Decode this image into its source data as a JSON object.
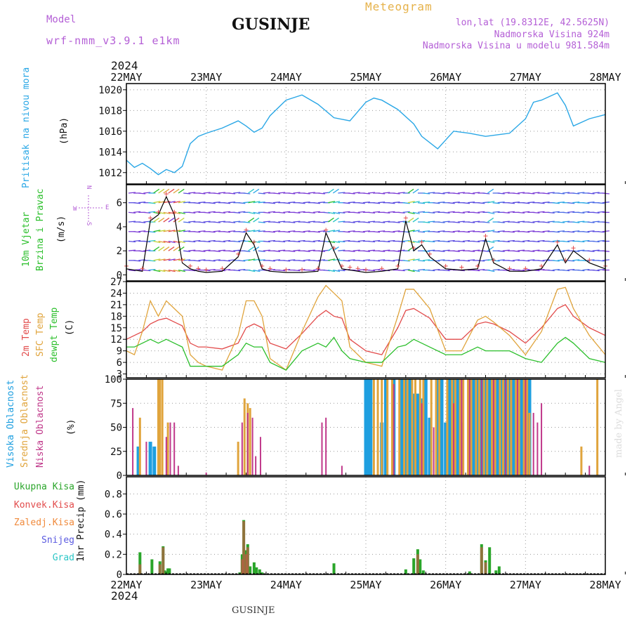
{
  "header": {
    "model_label": "Model",
    "model_name": "wrf-nmm_v3.9.1 e1km",
    "title": "GUSINJE",
    "meteogram_label": "Meteogram",
    "lonlat": "lon,lat (19.8312E, 42.5625N)",
    "elevation": "Nadmorska Visina 924m",
    "model_elevation": "Nadmorska Visina u modelu 981.584m",
    "year": "2024",
    "footer_title": "GUSINJE",
    "credit": "made by Angel"
  },
  "colors": {
    "pressure": "#2aa7e6",
    "temp2m": "#e24b4b",
    "sfc": "#e0a43c",
    "dew": "#2bbf2b",
    "high_cloud": "#1e9fe0",
    "mid_cloud": "#e0a43c",
    "low_cloud": "#c0388a",
    "total_precip": "#2aa52a",
    "conv_precip": "#e24b4b",
    "frz_precip": "#f08a3c",
    "snow": "#5a5ae0",
    "hail": "#2ac6c6"
  },
  "chart_data": [
    {
      "type": "line",
      "panel": "pressure",
      "ylabel_main": "Pritisak na nivou mora",
      "ylabel_unit": "(hPa)",
      "x_ticks": [
        "22MAY",
        "23MAY",
        "24MAY",
        "25MAY",
        "26MAY",
        "27MAY",
        "28MAY"
      ],
      "x_days": [
        0,
        1,
        2,
        3,
        4,
        5,
        6
      ],
      "y_ticks": [
        "1012",
        "1014",
        "1016",
        "1018",
        "1020"
      ],
      "ylim": [
        1010.9,
        1020.6
      ],
      "series": [
        {
          "x": [
            0,
            0.1,
            0.2,
            0.3,
            0.4,
            0.5,
            0.6,
            0.7,
            0.8,
            0.9,
            1.0,
            1.2,
            1.4,
            1.5,
            1.6,
            1.7,
            1.8,
            2.0,
            2.2,
            2.4,
            2.6,
            2.8,
            3.0,
            3.1,
            3.2,
            3.4,
            3.6,
            3.7,
            3.9,
            4.1,
            4.3,
            4.5,
            4.7,
            4.8,
            5.0,
            5.1,
            5.2,
            5.4,
            5.5,
            5.6,
            5.8,
            6.0
          ],
          "values": [
            1013.2,
            1012.5,
            1012.9,
            1012.4,
            1011.8,
            1012.3,
            1012.0,
            1012.6,
            1014.8,
            1015.5,
            1015.8,
            1016.3,
            1017.0,
            1016.5,
            1015.9,
            1016.3,
            1017.5,
            1019.0,
            1019.5,
            1018.6,
            1017.3,
            1017.0,
            1018.8,
            1019.2,
            1019.0,
            1018.1,
            1016.7,
            1015.5,
            1014.3,
            1016.0,
            1015.8,
            1015.5,
            1015.7,
            1015.8,
            1017.2,
            1018.8,
            1019.0,
            1019.7,
            1018.5,
            1016.5,
            1017.2,
            1017.6
          ]
        }
      ]
    },
    {
      "type": "line",
      "panel": "wind",
      "ylabel_main": "10m Vjetar",
      "ylabel_main2": "Brzina i Pravac",
      "ylabel_unit": "(m/s)",
      "compass": {
        "n": "N",
        "s": "S",
        "w": "W",
        "e": "E"
      },
      "y_ticks": [
        "0",
        "2",
        "4",
        "6"
      ],
      "ylim": [
        -0.5,
        7.5
      ],
      "series": [
        {
          "name": "speed",
          "x": [
            0,
            0.2,
            0.3,
            0.4,
            0.5,
            0.6,
            0.7,
            0.8,
            0.9,
            1.0,
            1.2,
            1.4,
            1.5,
            1.6,
            1.7,
            1.8,
            2.0,
            2.2,
            2.4,
            2.5,
            2.6,
            2.7,
            2.8,
            2.9,
            3.0,
            3.2,
            3.4,
            3.5,
            3.6,
            3.7,
            3.8,
            4.0,
            4.2,
            4.4,
            4.5,
            4.6,
            4.8,
            5.0,
            5.2,
            5.4,
            5.5,
            5.6,
            5.8,
            6.0
          ],
          "values": [
            0.5,
            0.3,
            4.5,
            5.0,
            6.5,
            5.0,
            1.0,
            0.5,
            0.3,
            0.2,
            0.3,
            1.5,
            3.5,
            2.5,
            0.5,
            0.3,
            0.2,
            0.2,
            0.3,
            3.5,
            2.0,
            0.5,
            0.4,
            0.3,
            0.2,
            0.3,
            0.5,
            4.5,
            2.0,
            2.5,
            1.5,
            0.5,
            0.4,
            0.5,
            3.0,
            1.0,
            0.3,
            0.3,
            0.5,
            2.5,
            1.0,
            2.0,
            1.0,
            0.5
          ]
        }
      ]
    },
    {
      "type": "line",
      "panel": "temperature",
      "ylabel_main": "2m Temp",
      "ylabel_main2": "SFC Temp",
      "ylabel_main3": "dewpt Temp",
      "ylabel_unit": "(C)",
      "y_ticks": [
        "3",
        "6",
        "9",
        "12",
        "15",
        "18",
        "21",
        "24",
        "27"
      ],
      "ylim": [
        2,
        27
      ],
      "series": [
        {
          "name": "2m Temp",
          "x": [
            0,
            0.1,
            0.2,
            0.3,
            0.4,
            0.5,
            0.6,
            0.7,
            0.8,
            0.9,
            1.0,
            1.2,
            1.4,
            1.5,
            1.6,
            1.7,
            1.8,
            2.0,
            2.2,
            2.4,
            2.5,
            2.6,
            2.7,
            2.8,
            3.0,
            3.2,
            3.4,
            3.5,
            3.6,
            3.8,
            4.0,
            4.2,
            4.4,
            4.5,
            4.6,
            4.8,
            5.0,
            5.2,
            5.4,
            5.5,
            5.6,
            5.8,
            6.0
          ],
          "values": [
            12.0,
            13.0,
            14.0,
            16.0,
            17.0,
            17.5,
            16.5,
            15.5,
            11.0,
            10.0,
            10.0,
            9.5,
            11.0,
            15.0,
            16.0,
            15.0,
            11.0,
            9.5,
            13.5,
            18.0,
            19.5,
            18.0,
            17.5,
            12.0,
            9.0,
            8.0,
            15.0,
            19.5,
            20.0,
            17.5,
            12.0,
            12.0,
            16.0,
            16.5,
            16.0,
            14.0,
            11.0,
            15.0,
            20.0,
            21.0,
            18.0,
            15.0,
            13.0
          ]
        },
        {
          "name": "SFC Temp",
          "x": [
            0,
            0.1,
            0.2,
            0.3,
            0.4,
            0.5,
            0.6,
            0.7,
            0.8,
            0.9,
            1.0,
            1.2,
            1.4,
            1.5,
            1.6,
            1.7,
            1.8,
            2.0,
            2.2,
            2.4,
            2.5,
            2.6,
            2.7,
            2.8,
            3.0,
            3.2,
            3.4,
            3.5,
            3.6,
            3.8,
            4.0,
            4.2,
            4.4,
            4.5,
            4.6,
            4.8,
            5.0,
            5.2,
            5.4,
            5.5,
            5.6,
            5.8,
            6.0
          ],
          "values": [
            9.0,
            8.0,
            14.0,
            22.0,
            18.0,
            22.0,
            20.0,
            18.0,
            8.0,
            6.0,
            5.0,
            4.0,
            13.0,
            22.0,
            22.0,
            18.0,
            7.0,
            4.0,
            14.0,
            23.0,
            26.0,
            24.0,
            22.0,
            10.0,
            6.0,
            5.0,
            18.0,
            25.0,
            25.0,
            20.0,
            9.0,
            9.0,
            17.0,
            18.0,
            16.5,
            13.0,
            8.0,
            14.0,
            25.0,
            25.5,
            20.0,
            13.0,
            8.0
          ]
        },
        {
          "name": "dewpt Temp",
          "x": [
            0,
            0.1,
            0.2,
            0.3,
            0.4,
            0.5,
            0.6,
            0.7,
            0.8,
            0.9,
            1.0,
            1.2,
            1.4,
            1.5,
            1.6,
            1.7,
            1.8,
            2.0,
            2.2,
            2.4,
            2.5,
            2.6,
            2.7,
            2.8,
            3.0,
            3.2,
            3.4,
            3.5,
            3.6,
            3.8,
            4.0,
            4.2,
            4.4,
            4.5,
            4.6,
            4.8,
            5.0,
            5.2,
            5.4,
            5.5,
            5.6,
            5.8,
            6.0
          ],
          "values": [
            10.0,
            10.0,
            11.0,
            12.0,
            11.0,
            12.0,
            11.0,
            10.0,
            5.0,
            5.0,
            5.0,
            5.0,
            8.0,
            11.0,
            10.0,
            10.0,
            6.0,
            4.0,
            9.0,
            11.0,
            10.0,
            12.5,
            9.0,
            7.0,
            6.0,
            6.0,
            10.0,
            10.5,
            12.0,
            10.0,
            8.0,
            8.0,
            10.0,
            9.0,
            9.0,
            9.0,
            7.0,
            6.0,
            11.0,
            12.5,
            11.0,
            7.0,
            6.0
          ]
        }
      ]
    },
    {
      "type": "bar",
      "panel": "clouds",
      "ylabel_main": "Visoka Oblacnost",
      "ylabel_main2": "Srednja Oblacnost",
      "ylabel_main3": "Niska Oblacnost",
      "ylabel_unit": "(%)",
      "y_ticks": [
        "0",
        "25",
        "50",
        "75",
        "100"
      ],
      "ylim": [
        0,
        100
      ],
      "series": [
        {
          "name": "high",
          "x": [
            0.15,
            0.3,
            0.35,
            3.0,
            3.03,
            3.06,
            3.2,
            3.25,
            3.35,
            3.45,
            3.5,
            3.55,
            3.6,
            3.65,
            3.7,
            3.75,
            3.8,
            3.9,
            3.95,
            4.0,
            4.05,
            4.1,
            4.15,
            4.2,
            4.3,
            4.35,
            4.4,
            4.45,
            4.5,
            4.55,
            4.6,
            4.65,
            4.7,
            4.75,
            4.8,
            4.85,
            4.9,
            4.95,
            5.0,
            5.05
          ],
          "values": [
            30,
            35,
            30,
            100,
            100,
            100,
            55,
            100,
            100,
            100,
            100,
            100,
            85,
            85,
            80,
            100,
            60,
            100,
            100,
            55,
            100,
            100,
            100,
            55,
            100,
            100,
            100,
            100,
            100,
            100,
            100,
            100,
            100,
            100,
            100,
            100,
            100,
            100,
            100,
            100
          ]
        },
        {
          "name": "mid",
          "x": [
            0.17,
            0.4,
            0.42,
            0.45,
            0.52,
            1.4,
            1.48,
            1.52,
            1.55,
            3.1,
            3.15,
            3.2,
            3.27,
            3.33,
            3.42,
            3.48,
            3.52,
            3.58,
            3.62,
            3.68,
            3.72,
            3.82,
            3.88,
            3.92,
            4.02,
            4.08,
            4.12,
            4.18,
            4.22,
            4.28,
            4.32,
            4.38,
            4.42,
            4.48,
            4.52,
            4.58,
            4.62,
            4.68,
            4.72,
            4.78,
            4.82,
            4.88,
            4.92,
            4.98,
            5.02,
            5.05,
            5.7,
            5.9
          ],
          "values": [
            60,
            100,
            100,
            100,
            55,
            35,
            80,
            75,
            70,
            100,
            100,
            100,
            100,
            100,
            100,
            100,
            100,
            100,
            100,
            100,
            100,
            100,
            100,
            100,
            100,
            100,
            100,
            100,
            100,
            100,
            100,
            100,
            100,
            100,
            100,
            100,
            100,
            100,
            100,
            100,
            100,
            100,
            100,
            100,
            100,
            65,
            30,
            100
          ]
        },
        {
          "name": "low",
          "x": [
            0.08,
            0.25,
            0.5,
            0.55,
            0.6,
            0.65,
            1.0,
            1.45,
            1.52,
            1.58,
            1.62,
            1.68,
            2.45,
            2.5,
            2.7,
            3.35,
            3.7,
            3.85,
            4.1,
            4.2,
            4.3,
            4.45,
            4.6,
            4.75,
            4.9,
            5.0,
            5.1,
            5.15,
            5.2,
            5.8
          ],
          "values": [
            70,
            35,
            40,
            55,
            55,
            10,
            3,
            55,
            65,
            60,
            20,
            40,
            55,
            60,
            10,
            95,
            75,
            50,
            75,
            100,
            100,
            100,
            100,
            100,
            100,
            100,
            65,
            55,
            75,
            10
          ]
        }
      ]
    },
    {
      "type": "bar",
      "panel": "precipitation",
      "legend": [
        "Ukupna Kisa",
        "Konvek.Kisa",
        "Zaledj.Kisa",
        "Snijeg",
        "Grad"
      ],
      "ylabel_unit": "1hr Precip (mm)",
      "y_ticks": [
        "0",
        "0.2",
        "0.4",
        "0.6",
        "0.8"
      ],
      "ylim": [
        0,
        0.97
      ],
      "series": [
        {
          "name": "Ukupna Kisa",
          "x": [
            0.17,
            0.32,
            0.42,
            0.46,
            0.48,
            0.52,
            0.54,
            1.42,
            1.45,
            1.47,
            1.5,
            1.52,
            1.55,
            1.6,
            1.63,
            1.67,
            1.7,
            2.6,
            3.5,
            3.6,
            3.65,
            3.68,
            3.72,
            4.3,
            4.45,
            4.5,
            4.55,
            4.63,
            4.67
          ],
          "values": [
            0.22,
            0.15,
            0.13,
            0.28,
            0.04,
            0.06,
            0.06,
            0.02,
            0.2,
            0.54,
            0.24,
            0.3,
            0.08,
            0.12,
            0.07,
            0.05,
            0.02,
            0.11,
            0.05,
            0.16,
            0.25,
            0.15,
            0.04,
            0.03,
            0.3,
            0.14,
            0.27,
            0.04,
            0.08
          ]
        },
        {
          "name": "Konvek.Kisa",
          "x": [
            0.17,
            0.42,
            0.46,
            1.45,
            1.47,
            1.5,
            1.52,
            3.65,
            4.45,
            4.5
          ],
          "values": [
            0.1,
            0.1,
            0.27,
            0.15,
            0.53,
            0.2,
            0.27,
            0.2,
            0.27,
            0.12
          ]
        }
      ]
    }
  ]
}
